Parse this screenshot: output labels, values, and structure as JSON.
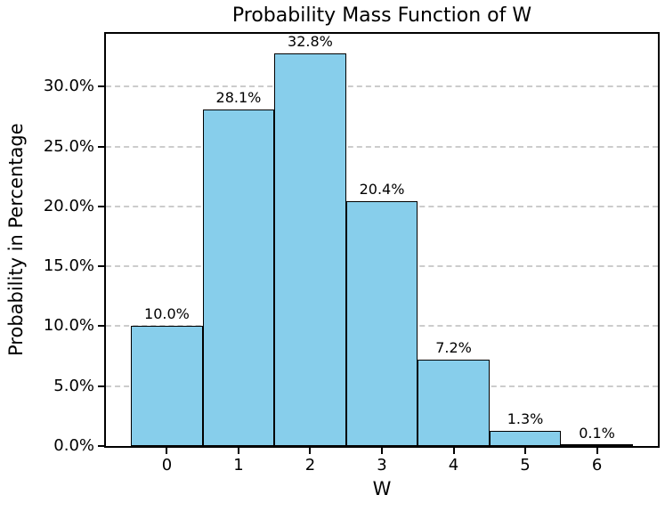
{
  "chart_data": {
    "type": "bar",
    "title": "Probability Mass Function of W",
    "xlabel": "W",
    "ylabel": "Probability in Percentage",
    "categories": [
      "0",
      "1",
      "2",
      "3",
      "4",
      "5",
      "6"
    ],
    "values": [
      10.0,
      28.1,
      32.8,
      20.4,
      7.2,
      1.3,
      0.1
    ],
    "bar_labels": [
      "10.0%",
      "28.1%",
      "32.8%",
      "20.4%",
      "7.2%",
      "1.3%",
      "0.1%"
    ],
    "ytick_values": [
      0,
      5,
      10,
      15,
      20,
      25,
      30
    ],
    "ytick_labels": [
      "0.0%",
      "5.0%",
      "10.0%",
      "15.0%",
      "20.0%",
      "25.0%",
      "30.0%"
    ],
    "ylim": [
      0,
      34.4
    ],
    "xlim": [
      -0.85,
      6.85
    ],
    "bar_width": 1.0,
    "grid": "horizontal-dashed",
    "legend": "none",
    "colors": {
      "bar_fill": "#87CEEB",
      "bar_edge": "#000000",
      "grid": "#cccccc",
      "text": "#000000",
      "background": "#ffffff"
    }
  }
}
